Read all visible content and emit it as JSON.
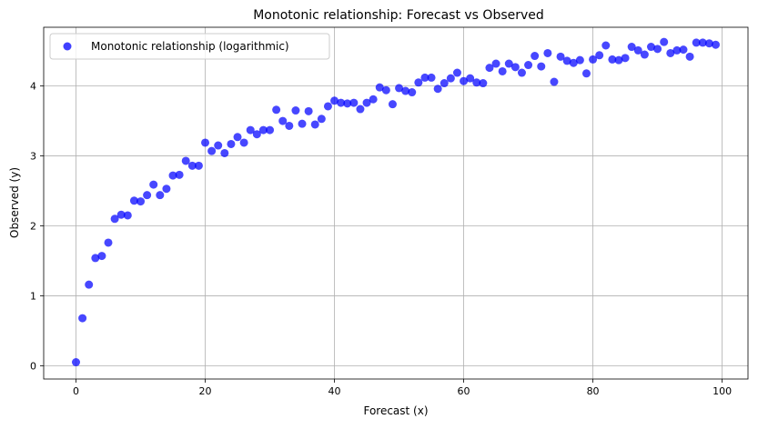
{
  "chart_data": {
    "type": "scatter",
    "title": "Monotonic relationship: Forecast vs Observed",
    "xlabel": "Forecast (x)",
    "ylabel": "Observed (y)",
    "xlim": [
      -5,
      104
    ],
    "ylim": [
      -0.19,
      4.84
    ],
    "xticks": [
      0,
      20,
      40,
      60,
      80,
      100
    ],
    "yticks": [
      0,
      1,
      2,
      3,
      4
    ],
    "grid": true,
    "legend_position": "top-left",
    "series": [
      {
        "name": "Monotonic relationship (logarithmic)",
        "color": "#0000ff",
        "x": [
          0,
          1,
          2,
          3,
          4,
          5,
          6,
          7,
          8,
          9,
          10,
          11,
          12,
          13,
          14,
          15,
          16,
          17,
          18,
          19,
          20,
          21,
          22,
          23,
          24,
          25,
          26,
          27,
          28,
          29,
          30,
          31,
          32,
          33,
          34,
          35,
          36,
          37,
          38,
          39,
          40,
          41,
          42,
          43,
          44,
          45,
          46,
          47,
          48,
          49,
          50,
          51,
          52,
          53,
          54,
          55,
          56,
          57,
          58,
          59,
          60,
          61,
          62,
          63,
          64,
          65,
          66,
          67,
          68,
          69,
          70,
          71,
          72,
          73,
          74,
          75,
          76,
          77,
          78,
          79,
          80,
          81,
          82,
          83,
          84,
          85,
          86,
          87,
          88,
          89,
          90,
          91,
          92,
          93,
          94,
          95,
          96,
          97,
          98,
          99
        ],
        "y": [
          0.05,
          0.68,
          1.16,
          1.54,
          1.57,
          1.76,
          2.1,
          2.16,
          2.15,
          2.36,
          2.35,
          2.44,
          2.59,
          2.44,
          2.53,
          2.72,
          2.73,
          2.93,
          2.86,
          2.86,
          3.19,
          3.07,
          3.15,
          3.04,
          3.17,
          3.27,
          3.19,
          3.37,
          3.31,
          3.37,
          3.37,
          3.66,
          3.5,
          3.43,
          3.65,
          3.46,
          3.64,
          3.45,
          3.53,
          3.71,
          3.79,
          3.76,
          3.75,
          3.76,
          3.67,
          3.76,
          3.81,
          3.98,
          3.94,
          3.74,
          3.97,
          3.93,
          3.91,
          4.05,
          4.12,
          4.12,
          3.96,
          4.04,
          4.11,
          4.19,
          4.07,
          4.11,
          4.05,
          4.04,
          4.26,
          4.32,
          4.21,
          4.32,
          4.27,
          4.19,
          4.3,
          4.43,
          4.28,
          4.47,
          4.06,
          4.42,
          4.36,
          4.33,
          4.37,
          4.18,
          4.38,
          4.44,
          4.58,
          4.38,
          4.37,
          4.4,
          4.56,
          4.51,
          4.45,
          4.56,
          4.53,
          4.63,
          4.47,
          4.51,
          4.52,
          4.42,
          4.62,
          4.62,
          4.61,
          4.59
        ]
      }
    ]
  }
}
